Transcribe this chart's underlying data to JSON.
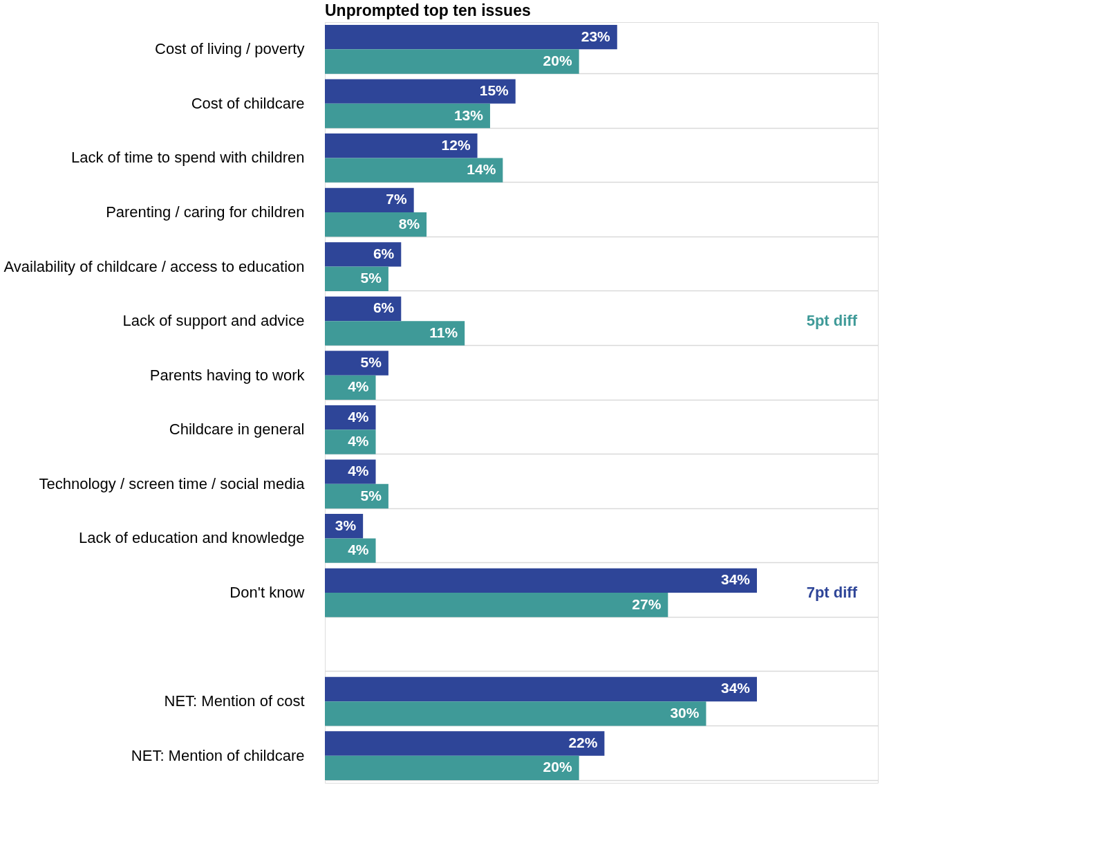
{
  "chart_data": {
    "type": "bar",
    "orientation": "horizontal",
    "title": "Unprompted top ten issues",
    "categories": [
      "Cost of living /  poverty",
      "Cost of childcare",
      "Lack of time to spend with children",
      "Parenting / caring for children",
      "Availability of childcare / access to education",
      "Lack of support and advice",
      "Parents having to work",
      "Childcare in general",
      "Technology / screen time / social media",
      "Lack of education and knowledge",
      "Don't know",
      null,
      "NET: Mention of cost",
      "NET: Mention of childcare"
    ],
    "series": [
      {
        "color": "#2e4598",
        "values": [
          23,
          15,
          12,
          7,
          6,
          6,
          5,
          4,
          4,
          3,
          34,
          null,
          34,
          22
        ],
        "value_labels": [
          "23%",
          "15%",
          "12%",
          "7%",
          "6%",
          "6%",
          "5%",
          "4%",
          "4%",
          "3%",
          "34%",
          null,
          "34%",
          "22%"
        ]
      },
      {
        "color": "#3f9a98",
        "values": [
          20,
          13,
          14,
          8,
          5,
          11,
          4,
          4,
          5,
          4,
          27,
          null,
          30,
          20
        ],
        "value_labels": [
          "20%",
          "13%",
          "14%",
          "8%",
          "5%",
          "11%",
          "4%",
          "4%",
          "5%",
          "4%",
          "27%",
          null,
          "30%",
          "20%"
        ]
      }
    ],
    "annotations": [
      "5pt diff",
      "7pt diff"
    ],
    "grid": "y",
    "legend": false
  }
}
